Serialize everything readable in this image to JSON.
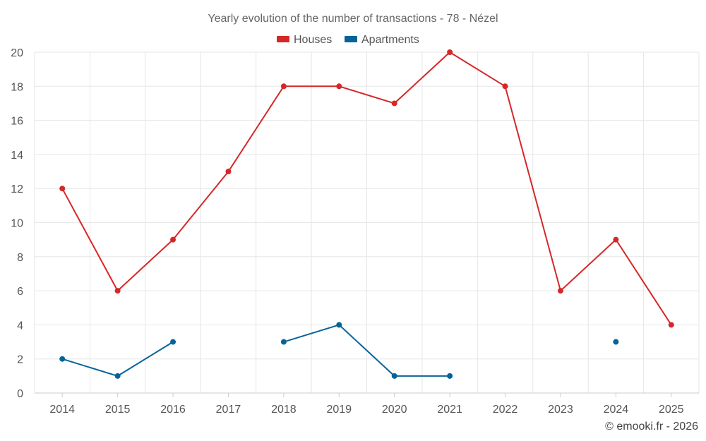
{
  "chart_data": {
    "type": "line",
    "title": "Yearly evolution of the number of transactions - 78 - Nézel",
    "categories": [
      "2014",
      "2015",
      "2016",
      "2017",
      "2018",
      "2019",
      "2020",
      "2021",
      "2022",
      "2023",
      "2024",
      "2025"
    ],
    "ylim": [
      0,
      20
    ],
    "yticks": [
      0,
      2,
      4,
      6,
      8,
      10,
      12,
      14,
      16,
      18,
      20
    ],
    "xlabel": "",
    "ylabel": "",
    "grid": true,
    "legend_position": "top-center",
    "series": [
      {
        "name": "Houses",
        "color": "#d62728",
        "values": [
          12,
          6,
          9,
          13,
          18,
          18,
          17,
          20,
          18,
          6,
          9,
          4
        ]
      },
      {
        "name": "Apartments",
        "color": "#06639a",
        "values": [
          2,
          1,
          3,
          null,
          3,
          4,
          1,
          1,
          null,
          null,
          3,
          null
        ]
      }
    ]
  },
  "footer": "© emooki.fr - 2026"
}
